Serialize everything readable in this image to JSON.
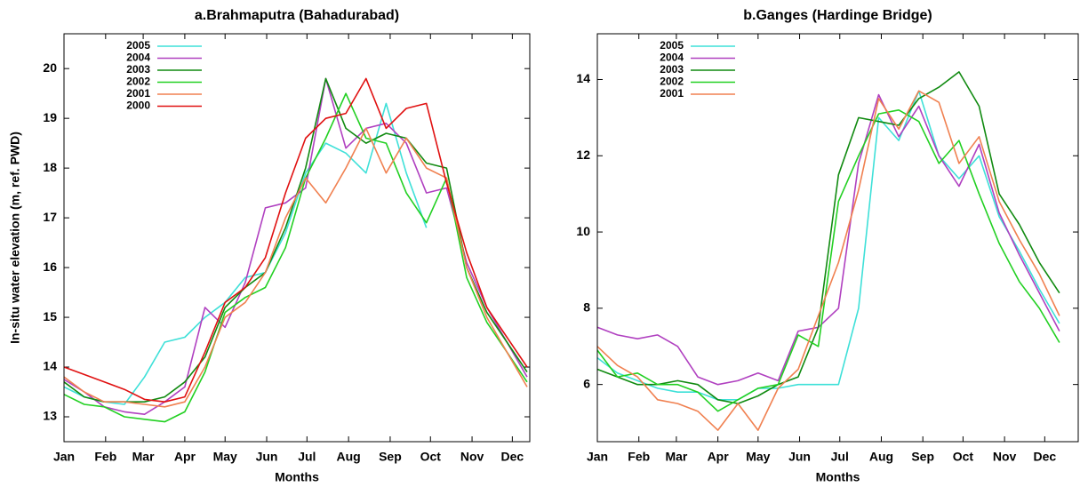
{
  "chart_data": [
    {
      "type": "line",
      "title": "a.Brahmaputra (Bahadurabad)",
      "xlabel": "Months",
      "ylabel": "In-situ water elevation (m, ref. PWD)",
      "x": [
        1,
        16,
        31,
        46,
        61,
        76,
        91,
        106,
        121,
        136,
        151,
        166,
        181,
        196,
        211,
        226,
        241,
        256,
        271,
        286,
        301,
        316,
        331,
        346
      ],
      "xlim": [
        1,
        348
      ],
      "xticks": [
        {
          "value": 1,
          "label": "Jan"
        },
        {
          "value": 32,
          "label": "Feb"
        },
        {
          "value": 60,
          "label": "Mar"
        },
        {
          "value": 91,
          "label": "Apr"
        },
        {
          "value": 121,
          "label": "May"
        },
        {
          "value": 152,
          "label": "Jun"
        },
        {
          "value": 182,
          "label": "Jul"
        },
        {
          "value": 213,
          "label": "Aug"
        },
        {
          "value": 244,
          "label": "Sep"
        },
        {
          "value": 274,
          "label": "Oct"
        },
        {
          "value": 305,
          "label": "Nov"
        },
        {
          "value": 335,
          "label": "Dec"
        }
      ],
      "ylim": [
        12.5,
        20.7
      ],
      "yticks": [
        13,
        14,
        15,
        16,
        17,
        18,
        19,
        20
      ],
      "legend": "upper left",
      "series": [
        {
          "name": "2005",
          "color": "#3ee0d8",
          "values": [
            13.6,
            13.4,
            13.3,
            13.25,
            13.8,
            14.5,
            14.6,
            15.0,
            15.3,
            15.8,
            15.9,
            16.7,
            17.9,
            18.5,
            18.3,
            17.9,
            19.3,
            17.9,
            16.8,
            null,
            null,
            null,
            null,
            null
          ]
        },
        {
          "name": "2004",
          "color": "#b040c0",
          "values": [
            13.75,
            13.5,
            13.2,
            13.1,
            13.05,
            13.3,
            13.6,
            15.2,
            14.8,
            15.7,
            17.2,
            17.3,
            17.6,
            19.8,
            18.4,
            18.8,
            18.9,
            18.5,
            17.5,
            17.6,
            16.1,
            15.2,
            14.5,
            13.8
          ]
        },
        {
          "name": "2003",
          "color": "#108a10",
          "values": [
            13.7,
            13.4,
            13.3,
            13.3,
            13.3,
            13.4,
            13.7,
            14.2,
            15.2,
            15.6,
            15.9,
            16.8,
            18.0,
            19.8,
            18.8,
            18.5,
            18.7,
            18.6,
            18.1,
            18.0,
            16.0,
            15.1,
            14.5,
            13.9
          ]
        },
        {
          "name": "2002",
          "color": "#22d022",
          "values": [
            13.45,
            13.25,
            13.2,
            13.0,
            12.95,
            12.9,
            13.1,
            13.9,
            15.1,
            15.4,
            15.6,
            16.4,
            17.8,
            18.6,
            19.5,
            18.6,
            18.5,
            17.5,
            16.9,
            17.8,
            15.8,
            14.9,
            14.3,
            13.7
          ]
        },
        {
          "name": "2001",
          "color": "#f08050",
          "values": [
            13.8,
            13.5,
            13.3,
            13.3,
            13.25,
            13.2,
            13.3,
            14.0,
            15.0,
            15.3,
            15.9,
            17.0,
            17.8,
            17.3,
            18.0,
            18.8,
            17.9,
            18.6,
            18.0,
            17.8,
            16.0,
            15.0,
            14.3,
            13.6
          ]
        },
        {
          "name": "2000",
          "color": "#e01010",
          "values": [
            14.0,
            13.85,
            13.7,
            13.55,
            13.35,
            13.3,
            13.4,
            14.3,
            15.3,
            15.6,
            16.2,
            17.5,
            18.6,
            19.0,
            19.1,
            19.8,
            18.8,
            19.2,
            19.3,
            17.7,
            16.3,
            15.2,
            14.6,
            14.0
          ]
        }
      ]
    },
    {
      "type": "line",
      "title": "b.Ganges (Hardinge Bridge)",
      "xlabel": "Months",
      "x": [
        1,
        16,
        31,
        46,
        61,
        76,
        91,
        106,
        121,
        136,
        151,
        166,
        181,
        196,
        211,
        226,
        241,
        256,
        271,
        286,
        301,
        316,
        331,
        346
      ],
      "xlim": [
        1,
        360
      ],
      "xticks": [
        {
          "value": 1,
          "label": "Jan"
        },
        {
          "value": 32,
          "label": "Feb"
        },
        {
          "value": 60,
          "label": "Mar"
        },
        {
          "value": 91,
          "label": "Apr"
        },
        {
          "value": 121,
          "label": "May"
        },
        {
          "value": 152,
          "label": "Jun"
        },
        {
          "value": 182,
          "label": "Jul"
        },
        {
          "value": 213,
          "label": "Aug"
        },
        {
          "value": 244,
          "label": "Sep"
        },
        {
          "value": 274,
          "label": "Oct"
        },
        {
          "value": 305,
          "label": "Nov"
        },
        {
          "value": 335,
          "label": "Dec"
        }
      ],
      "ylim": [
        4.5,
        15.2
      ],
      "yticks": [
        6,
        8,
        10,
        12,
        14
      ],
      "legend": "upper left",
      "series": [
        {
          "name": "2005",
          "color": "#3ee0d8",
          "values": [
            6.7,
            6.3,
            6.1,
            5.9,
            5.8,
            5.8,
            5.6,
            5.6,
            5.9,
            5.9,
            6.0,
            6.0,
            6.0,
            8.0,
            13.0,
            12.4,
            13.7,
            12.0,
            11.4,
            12.0,
            10.4,
            9.5,
            8.5,
            7.6
          ]
        },
        {
          "name": "2004",
          "color": "#b040c0",
          "values": [
            7.5,
            7.3,
            7.2,
            7.3,
            7.0,
            6.2,
            6.0,
            6.1,
            6.3,
            6.1,
            7.4,
            7.5,
            8.0,
            11.8,
            13.6,
            12.5,
            13.3,
            12.0,
            11.2,
            12.3,
            10.5,
            9.4,
            8.4,
            7.4
          ]
        },
        {
          "name": "2003",
          "color": "#108a10",
          "values": [
            6.4,
            6.2,
            6.0,
            6.0,
            6.1,
            6.0,
            5.6,
            5.5,
            5.7,
            6.0,
            6.2,
            7.5,
            11.5,
            13.0,
            12.9,
            12.8,
            13.5,
            13.8,
            14.2,
            13.3,
            11.0,
            10.2,
            9.2,
            8.4
          ]
        },
        {
          "name": "2002",
          "color": "#22d022",
          "values": [
            6.9,
            6.2,
            6.3,
            6.0,
            6.0,
            5.8,
            5.3,
            5.6,
            5.9,
            6.0,
            7.3,
            7.0,
            10.8,
            12.0,
            13.1,
            13.2,
            12.9,
            11.8,
            12.4,
            11.0,
            9.7,
            8.7,
            8.0,
            7.1
          ]
        },
        {
          "name": "2001",
          "color": "#f08050",
          "values": [
            7.0,
            6.5,
            6.2,
            5.6,
            5.5,
            5.3,
            4.8,
            5.5,
            4.8,
            5.9,
            6.4,
            7.8,
            9.2,
            11.1,
            13.5,
            12.7,
            13.7,
            13.4,
            11.8,
            12.5,
            10.8,
            9.8,
            8.9,
            7.8
          ]
        }
      ]
    }
  ]
}
